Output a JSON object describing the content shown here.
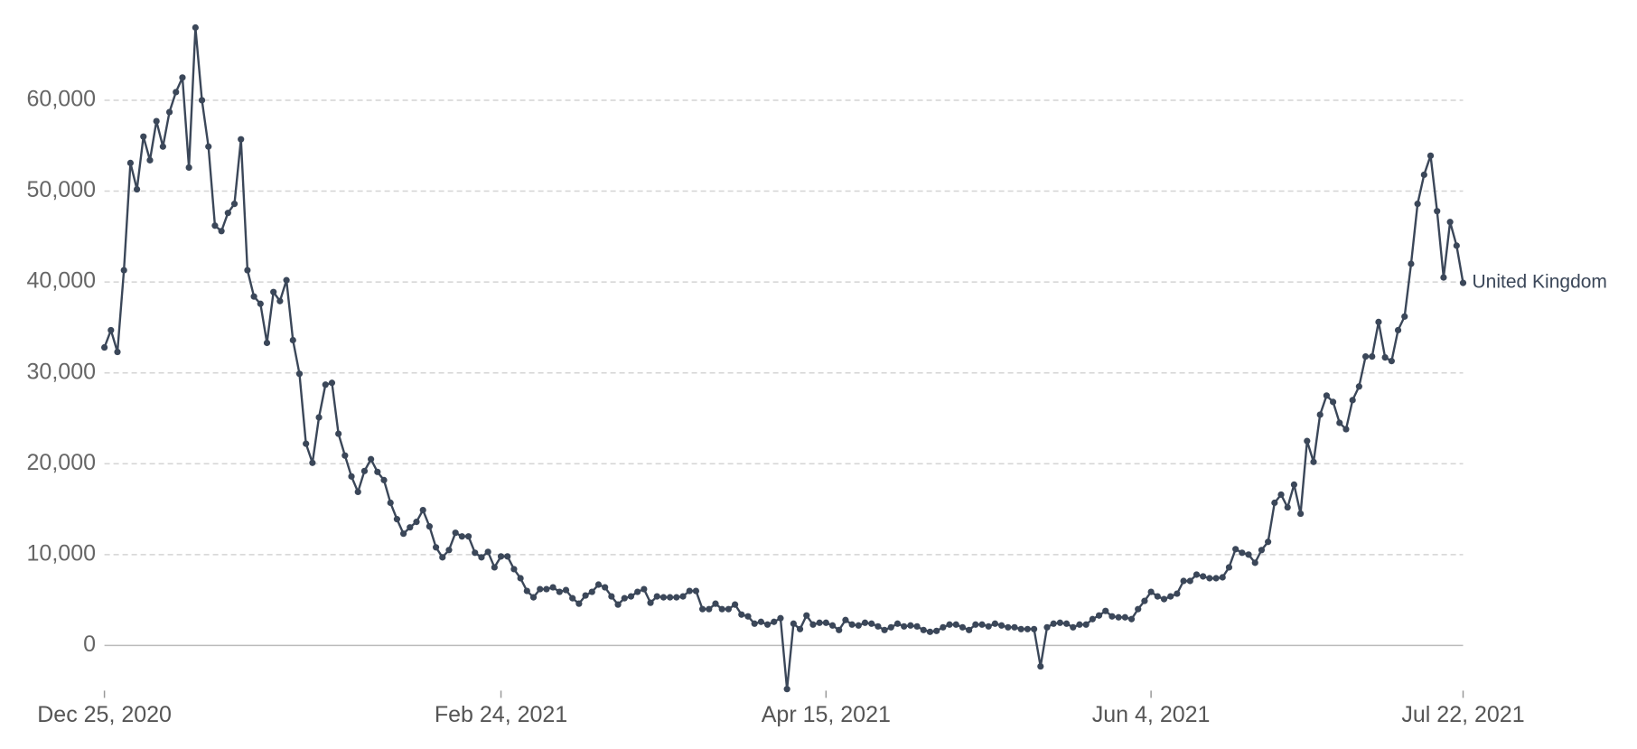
{
  "chart_data": {
    "type": "line",
    "grid": true,
    "label_position": "line-end",
    "x": [
      "2020-12-25",
      "2020-12-26",
      "2020-12-27",
      "2020-12-28",
      "2020-12-29",
      "2020-12-30",
      "2020-12-31",
      "2021-01-01",
      "2021-01-02",
      "2021-01-03",
      "2021-01-04",
      "2021-01-05",
      "2021-01-06",
      "2021-01-07",
      "2021-01-08",
      "2021-01-09",
      "2021-01-10",
      "2021-01-11",
      "2021-01-12",
      "2021-01-13",
      "2021-01-14",
      "2021-01-15",
      "2021-01-16",
      "2021-01-17",
      "2021-01-18",
      "2021-01-19",
      "2021-01-20",
      "2021-01-21",
      "2021-01-22",
      "2021-01-23",
      "2021-01-24",
      "2021-01-25",
      "2021-01-26",
      "2021-01-27",
      "2021-01-28",
      "2021-01-29",
      "2021-01-30",
      "2021-01-31",
      "2021-02-01",
      "2021-02-02",
      "2021-02-03",
      "2021-02-04",
      "2021-02-05",
      "2021-02-06",
      "2021-02-07",
      "2021-02-08",
      "2021-02-09",
      "2021-02-10",
      "2021-02-11",
      "2021-02-12",
      "2021-02-13",
      "2021-02-14",
      "2021-02-15",
      "2021-02-16",
      "2021-02-17",
      "2021-02-18",
      "2021-02-19",
      "2021-02-20",
      "2021-02-21",
      "2021-02-22",
      "2021-02-23",
      "2021-02-24",
      "2021-02-25",
      "2021-02-26",
      "2021-02-27",
      "2021-02-28",
      "2021-03-01",
      "2021-03-02",
      "2021-03-03",
      "2021-03-04",
      "2021-03-05",
      "2021-03-06",
      "2021-03-07",
      "2021-03-08",
      "2021-03-09",
      "2021-03-10",
      "2021-03-11",
      "2021-03-12",
      "2021-03-13",
      "2021-03-14",
      "2021-03-15",
      "2021-03-16",
      "2021-03-17",
      "2021-03-18",
      "2021-03-19",
      "2021-03-20",
      "2021-03-21",
      "2021-03-22",
      "2021-03-23",
      "2021-03-24",
      "2021-03-25",
      "2021-03-26",
      "2021-03-27",
      "2021-03-28",
      "2021-03-29",
      "2021-03-30",
      "2021-03-31",
      "2021-04-01",
      "2021-04-02",
      "2021-04-03",
      "2021-04-04",
      "2021-04-05",
      "2021-04-06",
      "2021-04-07",
      "2021-04-08",
      "2021-04-09",
      "2021-04-10",
      "2021-04-11",
      "2021-04-12",
      "2021-04-13",
      "2021-04-14",
      "2021-04-15",
      "2021-04-16",
      "2021-04-17",
      "2021-04-18",
      "2021-04-19",
      "2021-04-20",
      "2021-04-21",
      "2021-04-22",
      "2021-04-23",
      "2021-04-24",
      "2021-04-25",
      "2021-04-26",
      "2021-04-27",
      "2021-04-28",
      "2021-04-29",
      "2021-04-30",
      "2021-05-01",
      "2021-05-02",
      "2021-05-03",
      "2021-05-04",
      "2021-05-05",
      "2021-05-06",
      "2021-05-07",
      "2021-05-08",
      "2021-05-09",
      "2021-05-10",
      "2021-05-11",
      "2021-05-12",
      "2021-05-13",
      "2021-05-14",
      "2021-05-15",
      "2021-05-16",
      "2021-05-17",
      "2021-05-18",
      "2021-05-19",
      "2021-05-20",
      "2021-05-21",
      "2021-05-22",
      "2021-05-23",
      "2021-05-24",
      "2021-05-25",
      "2021-05-26",
      "2021-05-27",
      "2021-05-28",
      "2021-05-29",
      "2021-05-30",
      "2021-05-31",
      "2021-06-01",
      "2021-06-02",
      "2021-06-03",
      "2021-06-04",
      "2021-06-05",
      "2021-06-06",
      "2021-06-07",
      "2021-06-08",
      "2021-06-09",
      "2021-06-10",
      "2021-06-11",
      "2021-06-12",
      "2021-06-13",
      "2021-06-14",
      "2021-06-15",
      "2021-06-16",
      "2021-06-17",
      "2021-06-18",
      "2021-06-19",
      "2021-06-20",
      "2021-06-21",
      "2021-06-22",
      "2021-06-23",
      "2021-06-24",
      "2021-06-25",
      "2021-06-26",
      "2021-06-27",
      "2021-06-28",
      "2021-06-29",
      "2021-06-30",
      "2021-07-01",
      "2021-07-02",
      "2021-07-03",
      "2021-07-04",
      "2021-07-05",
      "2021-07-06",
      "2021-07-07",
      "2021-07-08",
      "2021-07-09",
      "2021-07-10",
      "2021-07-11",
      "2021-07-12",
      "2021-07-13",
      "2021-07-14",
      "2021-07-15",
      "2021-07-16",
      "2021-07-17",
      "2021-07-18",
      "2021-07-19",
      "2021-07-20",
      "2021-07-21",
      "2021-07-22"
    ],
    "series": [
      {
        "name": "United Kingdom",
        "color": "#3b4759",
        "values": [
          32800,
          34700,
          32300,
          41300,
          53100,
          50200,
          56000,
          53400,
          57700,
          54900,
          58700,
          60900,
          62500,
          52600,
          68000,
          60000,
          54900,
          46200,
          45600,
          47600,
          48600,
          55700,
          41300,
          38400,
          37600,
          33300,
          38900,
          37900,
          40200,
          33600,
          29900,
          22200,
          20100,
          25100,
          28700,
          28900,
          23300,
          20900,
          18600,
          16900,
          19200,
          20500,
          19100,
          18200,
          15700,
          13900,
          12300,
          13000,
          13600,
          14900,
          13100,
          10800,
          9700,
          10500,
          12400,
          12000,
          12000,
          10200,
          9700,
          10300,
          8600,
          9800,
          9800,
          8400,
          7400,
          6000,
          5300,
          6200,
          6200,
          6400,
          5900,
          6100,
          5200,
          4600,
          5500,
          5900,
          6700,
          6400,
          5400,
          4500,
          5200,
          5400,
          5900,
          6200,
          4700,
          5400,
          5300,
          5300,
          5300,
          5400,
          6000,
          6000,
          4000,
          4000,
          4600,
          4000,
          4000,
          4500,
          3400,
          3200,
          2400,
          2600,
          2300,
          2600,
          3000,
          -4800,
          2400,
          1800,
          3300,
          2300,
          2500,
          2500,
          2200,
          1700,
          2800,
          2300,
          2200,
          2500,
          2400,
          2100,
          1700,
          2000,
          2400,
          2100,
          2200,
          2100,
          1700,
          1500,
          1600,
          2000,
          2300,
          2300,
          2000,
          1700,
          2300,
          2300,
          2100,
          2400,
          2200,
          2000,
          2000,
          1800,
          1800,
          1800,
          -2300,
          2000,
          2400,
          2500,
          2400,
          2000,
          2300,
          2300,
          2900,
          3300,
          3800,
          3200,
          3100,
          3100,
          2900,
          4000,
          4900,
          5900,
          5400,
          5100,
          5400,
          5700,
          7100,
          7100,
          7800,
          7600,
          7400,
          7400,
          7500,
          8600,
          10600,
          10200,
          10000,
          9100,
          10500,
          11400,
          15700,
          16600,
          15200,
          17700,
          14500,
          22500,
          20200,
          25400,
          27500,
          26800,
          24500,
          23800,
          27000,
          28500,
          31800,
          31800,
          35600,
          31700,
          31300,
          34700,
          36200,
          42000,
          48600,
          51800,
          53900,
          47800,
          40500,
          46600,
          44000,
          39900
        ]
      }
    ],
    "xlim": [
      "2020-12-25",
      "2021-07-22"
    ],
    "xticks": [
      {
        "value": "2020-12-25",
        "label": "Dec 25, 2020"
      },
      {
        "value": "2021-02-24",
        "label": "Feb 24, 2021"
      },
      {
        "value": "2021-04-15",
        "label": "Apr 15, 2021"
      },
      {
        "value": "2021-06-04",
        "label": "Jun 4, 2021"
      },
      {
        "value": "2021-07-22",
        "label": "Jul 22, 2021"
      }
    ],
    "ylim": [
      -5000,
      70000
    ],
    "yticks": [
      0,
      {
        "value": 10000,
        "label": "10,000"
      },
      {
        "value": 20000,
        "label": "20,000"
      },
      {
        "value": 30000,
        "label": "30,000"
      },
      {
        "value": 40000,
        "label": "40,000"
      },
      {
        "value": 50000,
        "label": "50,000"
      },
      {
        "value": 60000,
        "label": "60,000"
      }
    ]
  }
}
